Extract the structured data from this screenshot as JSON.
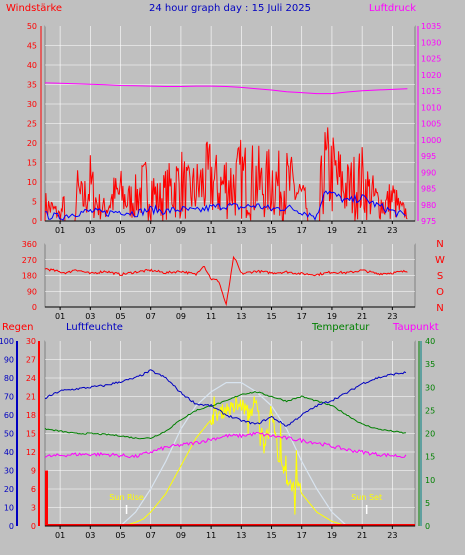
{
  "header": {
    "wind_label": "Windstärke",
    "title": "24 hour graph day : 15 Juli 2025",
    "pressure_label": "Luftdruck"
  },
  "lower_header": {
    "rain_label": "Regen",
    "humidity_label": "Luftfeuchte",
    "temp_label": "Temperatur",
    "dew_label": "Taupunkt"
  },
  "colors": {
    "background": "#c0c0c0",
    "grid": "#ffffff",
    "wind_gust": "#ff0000",
    "wind_avg": "#0000ff",
    "pressure": "#ff00ff",
    "direction": "#ff0000",
    "humidity": "#0000c0",
    "temperature": "#008000",
    "dewpoint": "#ff00ff",
    "solar": "#ffff00",
    "solar_max": "#d8e4f0",
    "rain": "#ff0000",
    "rain_rate_axis": "#008080"
  },
  "chart_data": [
    {
      "type": "line",
      "title": "24 hour graph day : 15 Juli 2025",
      "x_tick_labels": [
        "01",
        "03",
        "05",
        "07",
        "09",
        "11",
        "13",
        "15",
        "17",
        "19",
        "21",
        "23"
      ],
      "x_tick_hours": [
        1,
        3,
        5,
        7,
        9,
        11,
        13,
        15,
        17,
        19,
        21,
        23
      ],
      "x_range_hours": [
        0,
        24.5
      ],
      "ylim": [
        0,
        50
      ],
      "y_ticks": [
        0,
        5,
        10,
        15,
        20,
        25,
        30,
        35,
        40,
        45,
        50
      ],
      "y2lim": [
        975,
        1035
      ],
      "y2_ticks": [
        975,
        980,
        985,
        990,
        995,
        1000,
        1005,
        1010,
        1015,
        1020,
        1025,
        1030,
        1035
      ],
      "series": [
        {
          "name": "Windstärke",
          "axis": "y",
          "x": [
            0,
            0.5,
            1,
            1.5,
            2,
            2.5,
            3,
            3.5,
            4,
            4.5,
            5,
            5.5,
            6,
            6.5,
            7,
            7.5,
            8,
            8.5,
            9,
            9.5,
            10,
            10.5,
            11,
            11.5,
            12,
            12.5,
            13,
            13.5,
            14,
            14.5,
            15,
            15.5,
            16,
            16.5,
            17,
            17.5,
            18,
            18.5,
            19,
            19.5,
            20,
            20.5,
            21,
            21.5,
            22,
            22.5,
            23,
            23.5,
            24
          ],
          "values": [
            8,
            6,
            3,
            12,
            16,
            10,
            18,
            8,
            6,
            12,
            14,
            10,
            12,
            16,
            18,
            10,
            14,
            17,
            20,
            14,
            16,
            19,
            22,
            16,
            20,
            18,
            22,
            20,
            21,
            16,
            22,
            18,
            19,
            16,
            12,
            4,
            4,
            26,
            24,
            20,
            16,
            18,
            20,
            14,
            10,
            8,
            12,
            6,
            4
          ]
        },
        {
          "name": "Wind Mittel",
          "axis": "y",
          "x": [
            0,
            1,
            2,
            3,
            4,
            5,
            6,
            7,
            8,
            9,
            10,
            11,
            12,
            13,
            14,
            15,
            16,
            17,
            18,
            18.5,
            19,
            20,
            21,
            22,
            23,
            24
          ],
          "values": [
            1.5,
            1,
            2,
            2.5,
            2,
            2.5,
            2,
            3,
            2.5,
            3,
            2.5,
            3.5,
            4,
            3.5,
            4,
            3,
            3.5,
            2.5,
            1,
            8,
            7,
            5,
            6,
            4,
            2.5,
            1
          ]
        },
        {
          "name": "Luftdruck",
          "axis": "y2",
          "x": [
            0,
            1,
            2,
            3,
            4,
            5,
            6,
            7,
            8,
            9,
            10,
            11,
            12,
            13,
            14,
            15,
            16,
            17,
            18,
            19,
            20,
            21,
            22,
            23,
            24
          ],
          "values": [
            1017.5,
            1017.4,
            1017.2,
            1017.1,
            1016.9,
            1016.7,
            1016.6,
            1016.5,
            1016.4,
            1016.4,
            1016.5,
            1016.5,
            1016.4,
            1016.1,
            1015.7,
            1015.3,
            1014.8,
            1014.5,
            1014.2,
            1014.2,
            1014.7,
            1015.1,
            1015.3,
            1015.5,
            1015.7
          ]
        }
      ]
    },
    {
      "type": "line",
      "title": "",
      "ylim": [
        0,
        360
      ],
      "y_ticks": [
        0,
        90,
        180,
        270,
        360
      ],
      "y_tick_labels": [
        "0",
        "90",
        "180",
        "270",
        "360"
      ],
      "right_labels": [
        "N",
        "W",
        "S",
        "O",
        "N"
      ],
      "series": [
        {
          "name": "Windrichtung",
          "x": [
            0,
            0.5,
            1,
            1.5,
            2,
            3,
            4,
            5,
            6,
            7,
            8,
            9,
            10,
            10.5,
            11,
            11.5,
            12,
            12.5,
            13,
            14,
            15,
            16,
            17,
            18,
            19,
            20,
            21,
            22,
            23,
            24
          ],
          "values": [
            220,
            210,
            200,
            195,
            215,
            190,
            205,
            185,
            200,
            210,
            195,
            205,
            185,
            240,
            160,
            150,
            10,
            290,
            190,
            205,
            195,
            200,
            190,
            185,
            200,
            195,
            210,
            190,
            195,
            205
          ]
        }
      ]
    },
    {
      "type": "line",
      "title": "",
      "left_axis_humidity": [
        0,
        10,
        20,
        30,
        40,
        50,
        60,
        70,
        80,
        90,
        100
      ],
      "left_axis_rain": [
        0,
        3,
        6,
        9,
        12,
        15,
        18,
        21,
        24,
        27,
        30
      ],
      "right_axis_temperature": [
        0,
        5,
        10,
        15,
        20,
        25,
        30,
        35,
        40
      ],
      "annotations": [
        "Sun Rise",
        "Sun Set"
      ],
      "series": [
        {
          "name": "Luftfeuchte",
          "axis": "humidity",
          "x": [
            0,
            1,
            2,
            3,
            4,
            5,
            6,
            7,
            8,
            9,
            10,
            11,
            12,
            13,
            14,
            15,
            16,
            17,
            18,
            19,
            20,
            21,
            22,
            23,
            24
          ],
          "values": [
            69,
            73,
            74,
            75,
            76,
            78,
            80,
            84,
            80,
            72,
            66,
            65,
            60,
            57,
            55,
            59,
            54,
            60,
            65,
            68,
            72,
            77,
            80,
            82,
            83
          ]
        },
        {
          "name": "Temperatur",
          "axis": "temperature",
          "x": [
            0,
            1,
            2,
            3,
            4,
            5,
            6,
            7,
            8,
            9,
            10,
            11,
            12,
            13,
            14,
            15,
            16,
            17,
            18,
            19,
            20,
            21,
            22,
            23,
            24
          ],
          "values": [
            21,
            20.5,
            20,
            20,
            19.8,
            19.5,
            19,
            19,
            20.5,
            23,
            25,
            26,
            27,
            28.5,
            29,
            28,
            27,
            28,
            27,
            26,
            24,
            22,
            21,
            20.5,
            20
          ]
        },
        {
          "name": "Taupunkt",
          "axis": "temperature",
          "x": [
            0,
            2,
            4,
            6,
            8,
            10,
            12,
            13,
            14,
            15,
            16,
            17,
            18,
            20,
            22,
            24
          ],
          "values": [
            15,
            15.5,
            15.5,
            15,
            17,
            18,
            19.5,
            19.5,
            20,
            19.5,
            19,
            18.5,
            18,
            16.5,
            15.5,
            15
          ]
        },
        {
          "name": "Solar",
          "axis": "temperature",
          "x": [
            0,
            5,
            5.5,
            6,
            6.5,
            7,
            7.5,
            8,
            8.5,
            9,
            9.5,
            10,
            10.5,
            11,
            11.5,
            12,
            12.5,
            13,
            13.5,
            14,
            14.5,
            15,
            15.5,
            16,
            16.5,
            17,
            17.5,
            18,
            18.5,
            19,
            19.5,
            20,
            24
          ],
          "values": [
            0,
            0,
            0.3,
            0.8,
            1.5,
            3,
            5,
            7,
            10,
            13,
            16,
            19,
            21,
            23,
            24,
            25,
            25,
            26,
            24,
            26,
            17,
            25,
            14,
            10,
            8,
            7,
            5,
            3,
            2,
            1,
            0.5,
            0,
            0
          ]
        },
        {
          "name": "Solar Max",
          "axis": "temperature",
          "x": [
            5,
            6,
            7,
            8,
            9,
            10,
            11,
            12,
            13,
            14,
            15,
            16,
            17,
            18,
            19,
            20
          ],
          "values": [
            0,
            3,
            8,
            14,
            21,
            26,
            29,
            31,
            31,
            29,
            26,
            21,
            14,
            8,
            3,
            0
          ]
        },
        {
          "name": "Regen",
          "axis": "rain",
          "x": [
            0,
            0.3,
            0.5,
            24
          ],
          "values": [
            9,
            9,
            0,
            0
          ]
        }
      ]
    }
  ]
}
